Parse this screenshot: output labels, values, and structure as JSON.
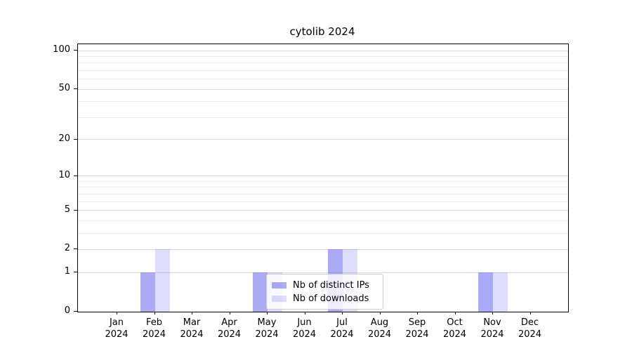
{
  "chart_data": {
    "type": "bar",
    "title": "cytolib 2024",
    "scale": "log1p",
    "categories": [
      "Jan",
      "Feb",
      "Mar",
      "Apr",
      "May",
      "Jun",
      "Jul",
      "Aug",
      "Sep",
      "Oct",
      "Nov",
      "Dec"
    ],
    "xtick_year": "2024",
    "series": [
      {
        "name": "Nb of distinct IPs",
        "color": "rgba(85,85,238,0.5)",
        "values": [
          0,
          1,
          0,
          0,
          1,
          0,
          2,
          0,
          0,
          0,
          1,
          0
        ]
      },
      {
        "name": "Nb of downloads",
        "color": "rgba(85,85,238,0.2)",
        "values": [
          0,
          2,
          0,
          0,
          1,
          0,
          2,
          0,
          0,
          0,
          1,
          0
        ]
      }
    ],
    "yticks": [
      0,
      1,
      2,
      5,
      10,
      20,
      50,
      100
    ],
    "minor_yticks": [
      3,
      4,
      6,
      7,
      8,
      9,
      30,
      40,
      60,
      70,
      80,
      90
    ],
    "ylim": [
      0,
      112
    ],
    "xlabel": "",
    "ylabel": "",
    "grid": true,
    "legend_position": "lower-center-right-inside"
  },
  "colors": {
    "bar_base": "#5555ee",
    "grid_major": "#d9d9d9",
    "grid_minor": "#ededed",
    "axis": "#000000",
    "legend_border": "#cccccc",
    "background": "#ffffff"
  }
}
